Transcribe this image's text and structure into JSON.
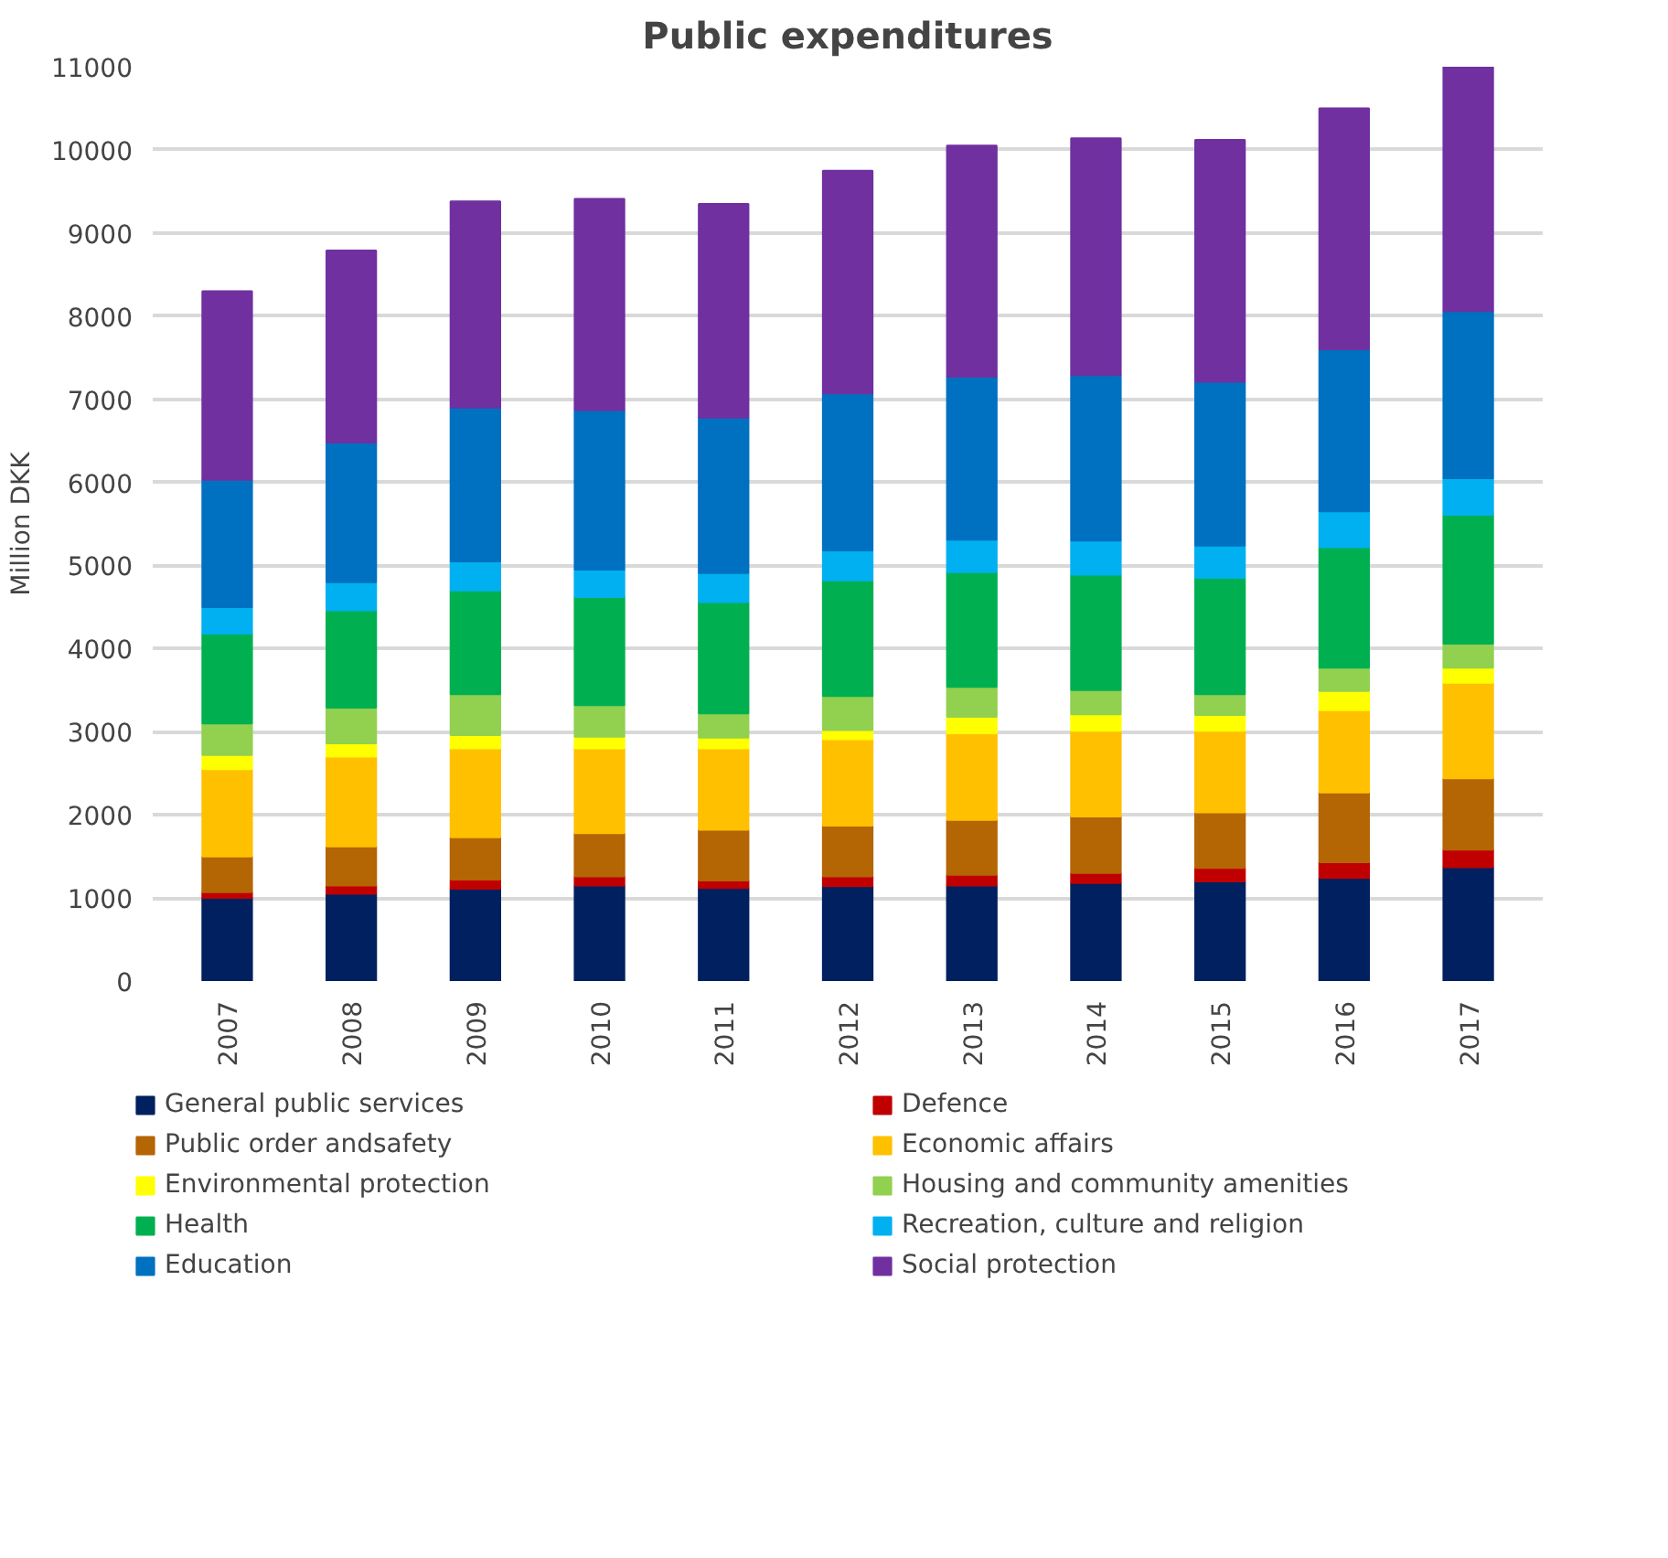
{
  "chart_data": {
    "type": "bar",
    "title": "Public expenditures",
    "ylabel": "Million DKK",
    "stacked": true,
    "categories": [
      "2007",
      "2008",
      "2009",
      "2010",
      "2011",
      "2012",
      "2013",
      "2014",
      "2015",
      "2016",
      "2017"
    ],
    "ylim": [
      0,
      11000
    ],
    "yticks": [
      0,
      1000,
      2000,
      3000,
      4000,
      5000,
      6000,
      7000,
      8000,
      9000,
      10000,
      11000
    ],
    "grid": "y",
    "legend": "bottom",
    "series": [
      {
        "name": "General public services",
        "color": "#002060",
        "values": [
          1000,
          1050,
          1110,
          1150,
          1120,
          1140,
          1150,
          1180,
          1200,
          1240,
          1370
        ]
      },
      {
        "name": "Defence",
        "color": "#c00000",
        "values": [
          70,
          100,
          110,
          110,
          90,
          120,
          130,
          120,
          160,
          190,
          210
        ]
      },
      {
        "name": "Public order andsafety",
        "color": "#b46504",
        "values": [
          430,
          470,
          510,
          520,
          610,
          610,
          660,
          680,
          670,
          840,
          860
        ]
      },
      {
        "name": "Economic affairs",
        "color": "#ffc000",
        "values": [
          1050,
          1080,
          1070,
          1020,
          980,
          1040,
          1040,
          1030,
          980,
          990,
          1150
        ]
      },
      {
        "name": "Environmental protection",
        "color": "#ffff00",
        "values": [
          170,
          160,
          160,
          140,
          130,
          110,
          200,
          200,
          190,
          230,
          180
        ]
      },
      {
        "name": "Housing and community amenities",
        "color": "#92d050",
        "values": [
          380,
          430,
          490,
          380,
          290,
          410,
          360,
          290,
          250,
          280,
          290
        ]
      },
      {
        "name": "Health",
        "color": "#00b050",
        "values": [
          1080,
          1170,
          1250,
          1300,
          1340,
          1390,
          1380,
          1390,
          1400,
          1450,
          1550
        ]
      },
      {
        "name": "Recreation, culture and religion",
        "color": "#00b0f0",
        "values": [
          320,
          340,
          350,
          330,
          350,
          360,
          390,
          410,
          390,
          430,
          440
        ]
      },
      {
        "name": "Education",
        "color": "#0070c0",
        "values": [
          1530,
          1680,
          1850,
          1920,
          1870,
          1890,
          1960,
          1990,
          1970,
          1950,
          2010
        ]
      },
      {
        "name": "Social protection",
        "color": "#7030a0",
        "values": [
          2270,
          2310,
          2480,
          2540,
          2570,
          2680,
          2780,
          2850,
          2910,
          2900,
          2940
        ]
      }
    ]
  }
}
